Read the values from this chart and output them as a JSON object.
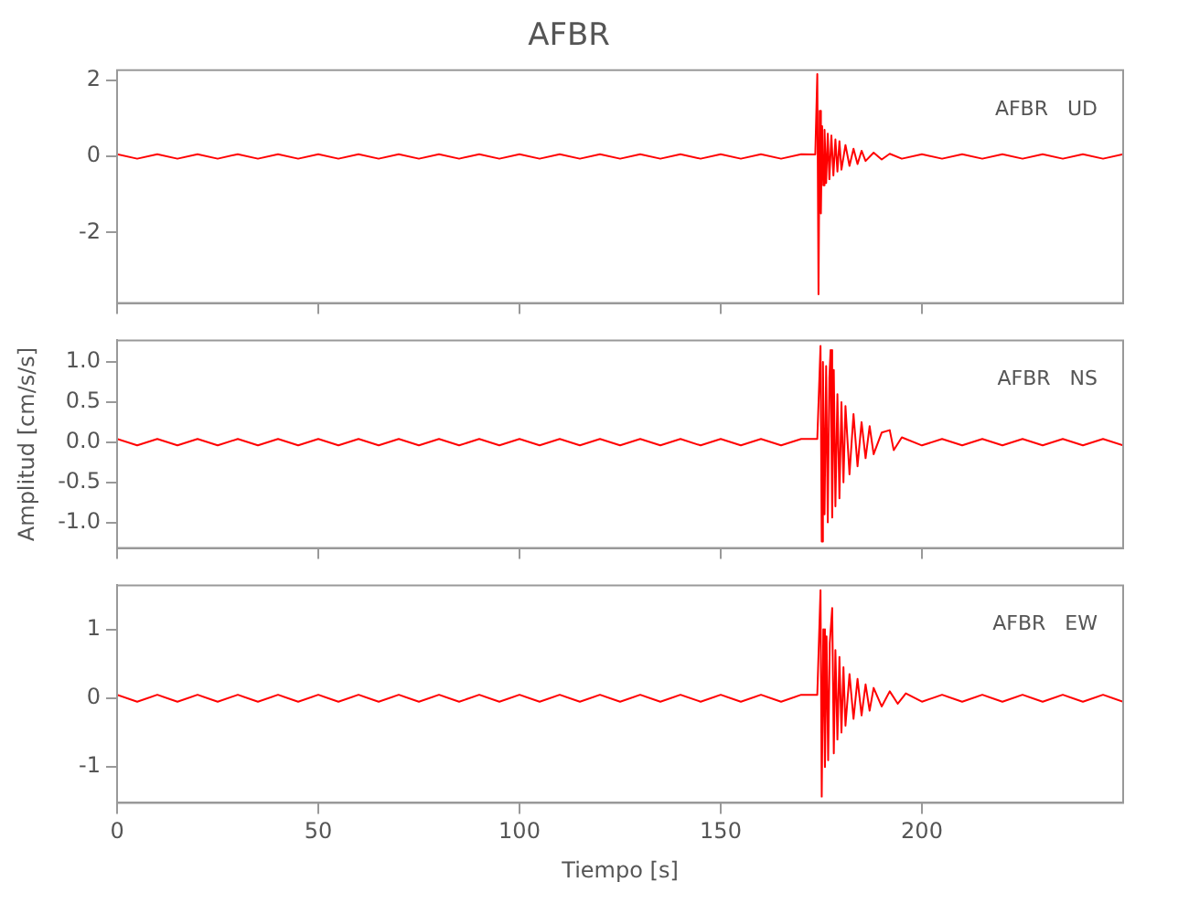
{
  "chart_data": [
    {
      "type": "line",
      "title": "AFBR",
      "annotations": [
        "AFBR   UD"
      ],
      "series": [
        {
          "color": "#ff0000",
          "x": [
            0,
            5,
            10,
            15,
            20,
            25,
            30,
            35,
            40,
            45,
            50,
            55,
            60,
            65,
            70,
            75,
            80,
            85,
            90,
            95,
            100,
            105,
            110,
            115,
            120,
            125,
            130,
            135,
            140,
            145,
            150,
            155,
            160,
            165,
            170,
            173.5,
            174,
            174.3,
            174.6,
            174.9,
            175.2,
            175.5,
            175.8,
            176.2,
            176.6,
            177,
            177.5,
            178,
            178.5,
            179,
            179.5,
            180,
            181,
            182,
            183,
            184,
            185,
            186,
            188,
            190,
            192,
            195,
            200,
            205,
            210,
            215,
            220,
            225,
            230,
            235,
            240,
            245,
            250
          ],
          "values": [
            0.06,
            -0.06,
            0.06,
            -0.06,
            0.06,
            -0.06,
            0.06,
            -0.06,
            0.06,
            -0.06,
            0.06,
            -0.06,
            0.06,
            -0.06,
            0.06,
            -0.06,
            0.06,
            -0.06,
            0.06,
            -0.06,
            0.06,
            -0.06,
            0.06,
            -0.06,
            0.06,
            -0.06,
            0.06,
            -0.06,
            0.06,
            -0.06,
            0.06,
            -0.06,
            0.06,
            -0.06,
            0.06,
            0.05,
            2.17,
            -3.63,
            1.2,
            -1.5,
            0.8,
            -0.76,
            0.7,
            -0.7,
            0.6,
            -0.6,
            0.55,
            -0.5,
            0.45,
            -0.4,
            0.4,
            -0.35,
            0.3,
            -0.25,
            0.2,
            -0.2,
            0.15,
            -0.12,
            0.1,
            -0.08,
            0.07,
            -0.06,
            0.06,
            -0.06,
            0.06,
            -0.06,
            0.06,
            -0.06,
            0.06,
            -0.06,
            0.06,
            -0.06,
            0.06
          ]
        }
      ],
      "xlim": [
        0,
        250
      ],
      "xticks": [
        0,
        50,
        100,
        150,
        200
      ],
      "ylim": [
        -3.86,
        2.27
      ],
      "yticks": [
        -2,
        0,
        2
      ],
      "tick_labels": "y",
      "grid": false,
      "marker": "none"
    },
    {
      "type": "line",
      "ylabel": "Amplitud [cm/s/s]",
      "annotations": [
        "AFBR   NS"
      ],
      "series": [
        {
          "color": "#ff0000",
          "x": [
            0,
            5,
            10,
            15,
            20,
            25,
            30,
            35,
            40,
            45,
            50,
            55,
            60,
            65,
            70,
            75,
            80,
            85,
            90,
            95,
            100,
            105,
            110,
            115,
            120,
            125,
            130,
            135,
            140,
            145,
            150,
            155,
            160,
            165,
            170,
            174,
            174.8,
            175.1,
            175.4,
            175.8,
            176.2,
            176.6,
            177,
            177.3,
            177.7,
            178.1,
            178.5,
            179,
            179.5,
            180,
            180.5,
            181,
            182,
            183,
            184,
            185,
            186,
            187,
            188,
            190,
            192,
            193,
            195,
            200,
            205,
            210,
            215,
            220,
            225,
            230,
            235,
            240,
            245,
            250
          ],
          "values": [
            0.04,
            -0.04,
            0.04,
            -0.04,
            0.04,
            -0.04,
            0.04,
            -0.04,
            0.04,
            -0.04,
            0.04,
            -0.04,
            0.04,
            -0.04,
            0.04,
            -0.04,
            0.04,
            -0.04,
            0.04,
            -0.04,
            0.04,
            -0.04,
            0.04,
            -0.04,
            0.04,
            -0.04,
            0.04,
            -0.04,
            0.04,
            -0.04,
            0.04,
            -0.04,
            0.04,
            -0.04,
            0.04,
            0.04,
            1.2,
            -1.24,
            1.0,
            -0.9,
            0.95,
            -1.0,
            0.8,
            1.15,
            -0.94,
            0.9,
            -0.8,
            0.6,
            -0.7,
            0.5,
            -0.5,
            0.45,
            -0.4,
            0.35,
            -0.3,
            0.25,
            -0.2,
            0.2,
            -0.15,
            0.12,
            0.15,
            -0.1,
            0.06,
            -0.04,
            0.04,
            -0.04,
            0.04,
            -0.04,
            0.04,
            -0.04,
            0.04,
            -0.04,
            0.04,
            -0.04
          ]
        }
      ],
      "xlim": [
        0,
        250
      ],
      "xticks": [
        0,
        50,
        100,
        150,
        200
      ],
      "ylim": [
        -1.32,
        1.27
      ],
      "yticks": [
        {
          "value": -1,
          "label": "-1.0"
        },
        {
          "value": -0.5,
          "label": "-0.5"
        },
        {
          "value": 0,
          "label": "0.0"
        },
        {
          "value": 0.5,
          "label": "0.5"
        },
        {
          "value": 1,
          "label": "1.0"
        }
      ],
      "tick_labels": "y",
      "grid": false,
      "marker": "none"
    },
    {
      "type": "line",
      "xlabel": "Tiempo [s]",
      "annotations": [
        "AFBR   EW"
      ],
      "series": [
        {
          "color": "#ff0000",
          "x": [
            0,
            5,
            10,
            15,
            20,
            25,
            30,
            35,
            40,
            45,
            50,
            55,
            60,
            65,
            70,
            75,
            80,
            85,
            90,
            95,
            100,
            105,
            110,
            115,
            120,
            125,
            130,
            135,
            140,
            145,
            150,
            155,
            160,
            165,
            170,
            174,
            174.8,
            175.1,
            175.5,
            175.9,
            176.3,
            176.7,
            177.1,
            177.7,
            178.1,
            178.5,
            179,
            179.5,
            180,
            180.5,
            181,
            182,
            183,
            184,
            185,
            186,
            187,
            188,
            190,
            192,
            194,
            196,
            200,
            205,
            210,
            215,
            220,
            225,
            230,
            235,
            240,
            245,
            250
          ],
          "values": [
            0.05,
            -0.05,
            0.05,
            -0.05,
            0.05,
            -0.05,
            0.05,
            -0.05,
            0.05,
            -0.05,
            0.05,
            -0.05,
            0.05,
            -0.05,
            0.05,
            -0.05,
            0.05,
            -0.05,
            0.05,
            -0.05,
            0.05,
            -0.05,
            0.05,
            -0.05,
            0.05,
            -0.05,
            0.05,
            -0.05,
            0.05,
            -0.05,
            0.05,
            -0.05,
            0.05,
            -0.05,
            0.05,
            0.05,
            1.57,
            -1.43,
            1.0,
            -1.0,
            0.9,
            -0.9,
            0.8,
            1.31,
            -0.8,
            0.7,
            -0.6,
            0.6,
            -0.5,
            0.45,
            -0.4,
            0.35,
            -0.3,
            0.28,
            -0.25,
            0.2,
            -0.18,
            0.15,
            -0.12,
            0.1,
            -0.08,
            0.07,
            -0.05,
            0.05,
            -0.05,
            0.05,
            -0.05,
            0.05,
            -0.05,
            0.05,
            -0.05,
            0.05,
            -0.05
          ]
        }
      ],
      "xlim": [
        0,
        250
      ],
      "xticks": [
        0,
        50,
        100,
        150,
        200
      ],
      "ylim": [
        -1.52,
        1.64
      ],
      "yticks": [
        -1,
        0,
        1
      ],
      "grid": false,
      "marker": "none"
    }
  ]
}
